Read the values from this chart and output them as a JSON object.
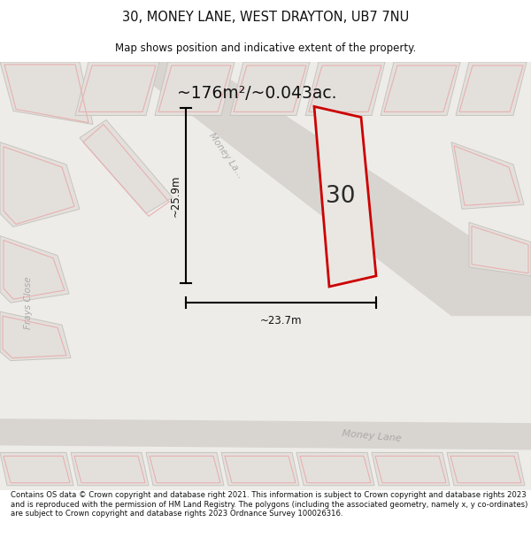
{
  "title_line1": "30, MONEY LANE, WEST DRAYTON, UB7 7NU",
  "title_line2": "Map shows position and indicative extent of the property.",
  "area_label": "~176m²/~0.043ac.",
  "property_number": "30",
  "dim_vertical": "~25.9m",
  "dim_horizontal": "~23.7m",
  "footer_text": "Contains OS data © Crown copyright and database right 2021. This information is subject to Crown copyright and database rights 2023 and is reproduced with the permission of HM Land Registry. The polygons (including the associated geometry, namely x, y co-ordinates) are subject to Crown copyright and database rights 2023 Ordnance Survey 100026316.",
  "bg_color": "#eeece9",
  "property_stroke": "#cc0000",
  "pink_stroke": "#e8b0b0",
  "water_color": "#ccdce8",
  "label_color": "#aaaaaa",
  "building_fill": "#e3e0dc",
  "building_edge": "#c8c4be",
  "white": "#ffffff",
  "black": "#111111"
}
